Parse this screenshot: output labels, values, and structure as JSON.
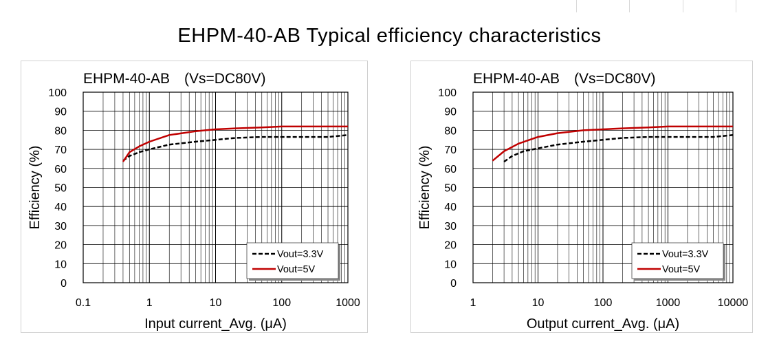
{
  "page_title": "EHPM-40-AB Typical efficiency characteristics",
  "chart_data": [
    {
      "type": "line",
      "title": "EHPM-40-AB　(Vs=DC80V)",
      "xlabel": "Input current_Avg. (μA)",
      "ylabel": "Efficiency (%)",
      "x_scale": "log",
      "xlim": [
        0.1,
        1000
      ],
      "ylim": [
        0,
        100
      ],
      "x_ticks": [
        "0.1",
        "1",
        "10",
        "100",
        "1000"
      ],
      "y_ticks": [
        "0",
        "10",
        "20",
        "30",
        "40",
        "50",
        "60",
        "70",
        "80",
        "90",
        "100"
      ],
      "grid": true,
      "legend": "bottom-right",
      "series": [
        {
          "name": "Vout=3.3V",
          "style": "dashed",
          "color": "#000000",
          "x": [
            0.4,
            0.5,
            0.7,
            1,
            2,
            5,
            10,
            20,
            50,
            100,
            200,
            500,
            1000
          ],
          "y": [
            64,
            66.5,
            68.5,
            70,
            72.5,
            74,
            75,
            76,
            76.5,
            76.5,
            76.5,
            76.5,
            77.5
          ]
        },
        {
          "name": "Vout=5V",
          "style": "solid",
          "color": "#c00000",
          "x": [
            0.4,
            0.5,
            0.7,
            1,
            2,
            5,
            10,
            20,
            50,
            100,
            200,
            500,
            1000
          ],
          "y": [
            63.5,
            68.5,
            71.5,
            74,
            77.5,
            79.5,
            80.5,
            81,
            81.5,
            82,
            82,
            82,
            82
          ]
        }
      ]
    },
    {
      "type": "line",
      "title": "EHPM-40-AB　(Vs=DC80V)",
      "xlabel": "Output current_Avg. (μA)",
      "ylabel": "Efficiency (%)",
      "x_scale": "log",
      "xlim": [
        1,
        10000
      ],
      "ylim": [
        0,
        100
      ],
      "x_ticks": [
        "1",
        "10",
        "100",
        "1000",
        "10000"
      ],
      "y_ticks": [
        "0",
        "10",
        "20",
        "30",
        "40",
        "50",
        "60",
        "70",
        "80",
        "90",
        "100"
      ],
      "grid": true,
      "legend": "bottom-right",
      "series": [
        {
          "name": "Vout=3.3V",
          "style": "dashed",
          "color": "#000000",
          "x": [
            3,
            4,
            6,
            10,
            20,
            50,
            100,
            200,
            500,
            1000,
            2000,
            5000,
            10000
          ],
          "y": [
            63.5,
            66.5,
            69,
            70.5,
            72.5,
            74,
            75,
            76,
            76.5,
            76.5,
            76.5,
            76.5,
            77.5
          ]
        },
        {
          "name": "Vout=5V",
          "style": "solid",
          "color": "#c00000",
          "x": [
            2,
            3,
            5,
            10,
            20,
            50,
            100,
            200,
            500,
            1000,
            2000,
            5000,
            10000
          ],
          "y": [
            64,
            69,
            73,
            76.5,
            78.5,
            80,
            80.5,
            81,
            81.5,
            82,
            82,
            82,
            82
          ]
        }
      ]
    }
  ]
}
